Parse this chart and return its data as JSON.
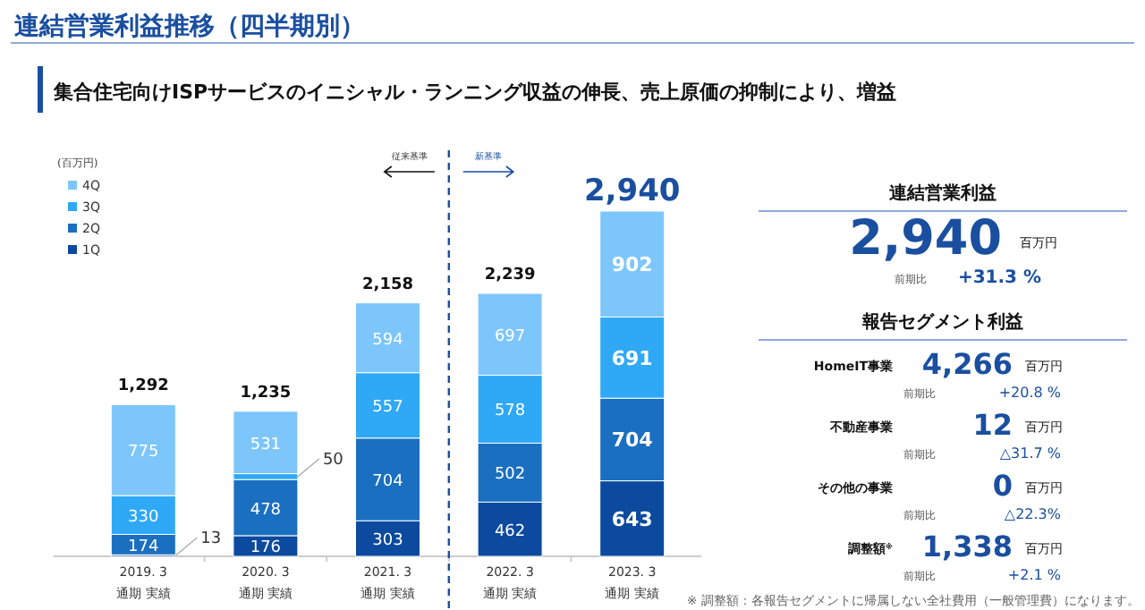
{
  "chart_data": [
    {
      "type": "bar",
      "stacked": true,
      "title": "連結営業利益推移（四半期別）",
      "subtitle": "集合住宅向けISPサービスのイニシャル・ランニング収益の伸長、売上原価の抑制により、増益",
      "ylabel": "(百万円)",
      "categories": [
        "2019. 3 通期 実績",
        "2020. 3 通期 実績",
        "2021. 3 通期 実績",
        "2022. 3 通期 実績",
        "2023. 3 通期 実績"
      ],
      "series": [
        {
          "name": "1Q",
          "color": "#0b4a9e",
          "values": [
            13,
            176,
            303,
            462,
            643
          ]
        },
        {
          "name": "2Q",
          "color": "#1a6fc0",
          "values": [
            174,
            478,
            704,
            502,
            704
          ]
        },
        {
          "name": "3Q",
          "color": "#2fa8f6",
          "values": [
            330,
            50,
            557,
            578,
            691
          ]
        },
        {
          "name": "4Q",
          "color": "#7dc6fb",
          "values": [
            775,
            531,
            594,
            697,
            902
          ]
        }
      ],
      "data_labels": true,
      "totals": [
        "1,292",
        "1,235",
        "2,158",
        "2,239",
        "2,940"
      ],
      "legend": "top left",
      "annotations": [
        "従来基準",
        "新基準"
      ]
    },
    {
      "type": "other",
      "title": "連結営業利益",
      "annotations": [
        "2,940",
        "百万円",
        "前期比",
        "+31.3 %",
        "報告セグメント利益",
        "HomeIT事業",
        "4,266",
        "百万円",
        "前期比",
        "+20.8 %",
        "不動産事業",
        "12",
        "百万円",
        "前期比",
        "△31.7 %",
        "その他の事業",
        "0",
        "百万円",
        "前期比",
        "△22.3%",
        "調整額$^{※}$",
        "1,338",
        "百万円",
        "前期比",
        "+2.1 %",
        "※ 調整額：各報告セグメントに帰属しない全社費用（一般管理費）になります。"
      ]
    }
  ]
}
